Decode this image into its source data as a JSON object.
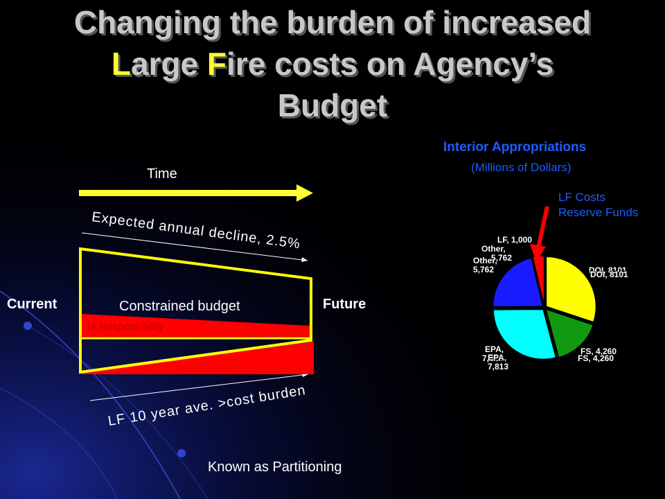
{
  "title": {
    "part1": "Changing the burden of increased",
    "large_first": "L",
    "large_rest": "arge ",
    "fire_first": "F",
    "fire_rest": "ire costs on Agency’s",
    "part3": "Budget"
  },
  "diagram": {
    "time_label": "Time",
    "decline_label": "Expected annual decline, 2.5%",
    "current_label": "Current",
    "future_label": "Future",
    "constrained_label": "Constrained budget",
    "ia_label": "IA Responsibility",
    "burden_label": "LF 10 year ave. >cost burden",
    "partition_label": "Known as Partitioning"
  },
  "colors": {
    "accent_yellow": "#ffff33",
    "burden_red": "#ff0000",
    "title_gray": "#c8c8c8",
    "label_blue": "#1e5cff"
  },
  "pie": {
    "title": "Interior Appropriations",
    "subtitle": "(Millions of Dollars)",
    "reserve_line1": "LF Costs",
    "reserve_line2": "Reserve Funds",
    "labels": {
      "lf": "LF, 1,000",
      "other_a": "Other,",
      "other_b": "5,762",
      "other2_a": "Other,",
      "other2_b": "5,762",
      "doi": "DOI, 8101",
      "doi2": "DOI, 8101",
      "fs": "FS, 4,260",
      "fs2": "FS, 4,260",
      "epa_a": "EPA,",
      "epa_b": "7,813",
      "epa2_a": "EPA,",
      "epa2_b": "7,813"
    }
  },
  "chart_data": {
    "type": "pie",
    "title": "Interior Appropriations",
    "subtitle": "(Millions of Dollars)",
    "categories": [
      "DOI",
      "FS",
      "EPA",
      "Other",
      "LF"
    ],
    "values": [
      8101,
      4260,
      7813,
      5762,
      1000
    ],
    "colors": [
      "#ffff00",
      "#119911",
      "#00ffff",
      "#1a1aff",
      "#ff0000"
    ]
  }
}
